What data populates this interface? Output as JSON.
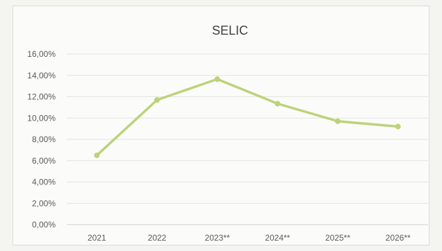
{
  "chart_data": {
    "type": "line",
    "title": "SELIC",
    "categories": [
      "2021",
      "2022",
      "2023**",
      "2024**",
      "2025**",
      "2026**"
    ],
    "series": [
      {
        "values": [
          6.5,
          11.7,
          13.65,
          11.35,
          9.7,
          9.2
        ],
        "color": "#bcd37a"
      }
    ],
    "ylim": [
      0,
      16
    ],
    "yticks": [
      "0,00%",
      "2,00%",
      "4,00%",
      "6,00%",
      "8,00%",
      "10,00%",
      "12,00%",
      "14,00%",
      "16,00%"
    ],
    "grid": true,
    "legend": "none"
  }
}
